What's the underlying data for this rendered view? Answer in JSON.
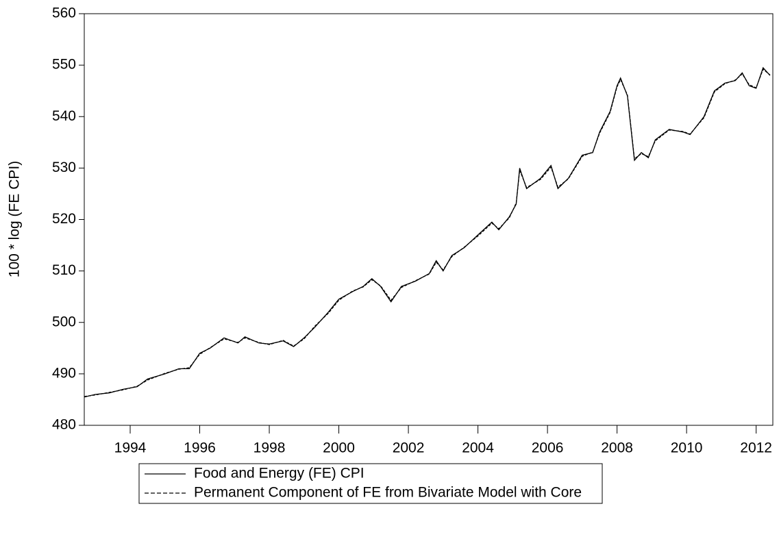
{
  "chart_data": {
    "type": "line",
    "y_label": "100 * log (FE CPI)",
    "x": [
      1992.68,
      1993.0,
      1993.4,
      1993.8,
      1994.2,
      1994.5,
      1995.0,
      1995.4,
      1995.7,
      1996.0,
      1996.3,
      1996.7,
      1997.1,
      1997.3,
      1997.7,
      1998.0,
      1998.4,
      1998.7,
      1999.0,
      1999.3,
      1999.7,
      2000.0,
      2000.4,
      2000.7,
      2000.95,
      2001.2,
      2001.5,
      2001.8,
      2002.2,
      2002.6,
      2002.8,
      2003.0,
      2003.25,
      2003.6,
      2004.0,
      2004.4,
      2004.6,
      2004.9,
      2005.1,
      2005.2,
      2005.4,
      2005.8,
      2006.1,
      2006.3,
      2006.6,
      2007.0,
      2007.3,
      2007.5,
      2007.8,
      2008.0,
      2008.1,
      2008.3,
      2008.5,
      2008.7,
      2008.9,
      2009.1,
      2009.5,
      2009.9,
      2010.1,
      2010.5,
      2010.8,
      2011.1,
      2011.4,
      2011.6,
      2011.8,
      2012.0,
      2012.2,
      2012.4
    ],
    "series": [
      {
        "name": "Food and Energy (FE) CPI",
        "color": "#000000",
        "dash": false,
        "values": [
          485.5,
          486.0,
          486.3,
          487.0,
          487.5,
          489.0,
          490.0,
          491.0,
          491.0,
          494.0,
          495.0,
          497.0,
          496.0,
          497.2,
          496.0,
          495.8,
          496.4,
          495.3,
          497.0,
          499.0,
          502.0,
          504.5,
          506.0,
          507.0,
          508.5,
          507.0,
          504.0,
          507.0,
          508.0,
          509.5,
          512.0,
          510.0,
          513.0,
          514.5,
          517.0,
          519.5,
          518.0,
          520.5,
          523.0,
          530.0,
          526.0,
          528.0,
          530.5,
          526.0,
          528.0,
          532.5,
          533.0,
          537.0,
          541.0,
          546.0,
          547.5,
          544.0,
          531.5,
          533.0,
          532.0,
          535.5,
          537.5,
          537.0,
          536.5,
          540.0,
          545.0,
          546.5,
          547.0,
          548.5,
          546.0,
          545.5,
          549.5,
          548.0
        ]
      },
      {
        "name": "Permanent Component of FE from Bivariate Model with Core",
        "color": "#000000",
        "dash": true,
        "values": [
          485.6,
          485.9,
          486.4,
          486.9,
          487.6,
          488.8,
          490.1,
          490.9,
          491.2,
          493.8,
          495.1,
          496.8,
          496.1,
          497.0,
          496.1,
          495.7,
          496.5,
          495.4,
          496.8,
          499.2,
          501.8,
          504.3,
          506.1,
          506.9,
          508.3,
          507.1,
          504.3,
          506.8,
          508.1,
          509.4,
          511.7,
          510.2,
          512.8,
          514.6,
          516.8,
          519.3,
          518.2,
          520.3,
          523.2,
          529.6,
          526.2,
          527.8,
          530.2,
          526.3,
          527.9,
          532.3,
          533.1,
          536.8,
          540.8,
          545.8,
          547.2,
          544.2,
          531.8,
          532.8,
          532.2,
          535.3,
          537.4,
          537.1,
          536.6,
          539.8,
          544.8,
          546.4,
          547.1,
          548.3,
          546.2,
          545.6,
          549.2,
          548.1
        ]
      }
    ],
    "xlim": [
      1992.68,
      2012.48
    ],
    "xticks": [
      1994,
      1996,
      1998,
      2000,
      2002,
      2004,
      2006,
      2008,
      2010,
      2012
    ],
    "ylim": [
      480,
      560
    ],
    "yticks": [
      480,
      490,
      500,
      510,
      520,
      530,
      540,
      550,
      560
    ],
    "legend": "bottom"
  }
}
